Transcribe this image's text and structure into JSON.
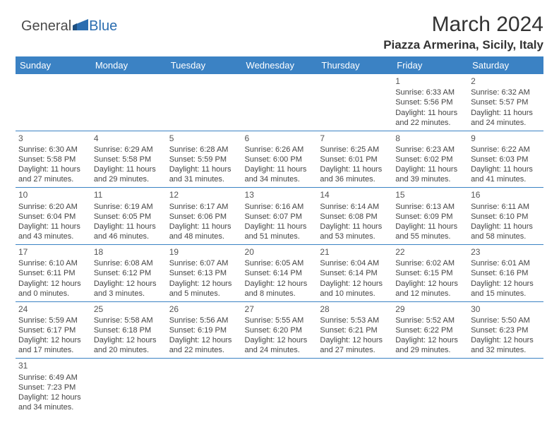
{
  "logo": {
    "text_a": "General",
    "text_b": "Blue"
  },
  "title": "March 2024",
  "location": "Piazza Armerina, Sicily, Italy",
  "colors": {
    "header_bg": "#3b82c4",
    "header_fg": "#ffffff",
    "cell_border": "#3b82c4",
    "text": "#444444",
    "title": "#333333"
  },
  "day_headers": [
    "Sunday",
    "Monday",
    "Tuesday",
    "Wednesday",
    "Thursday",
    "Friday",
    "Saturday"
  ],
  "weeks": [
    [
      null,
      null,
      null,
      null,
      null,
      {
        "n": "1",
        "sunrise": "6:33 AM",
        "sunset": "5:56 PM",
        "daylight": "11 hours and 22 minutes."
      },
      {
        "n": "2",
        "sunrise": "6:32 AM",
        "sunset": "5:57 PM",
        "daylight": "11 hours and 24 minutes."
      }
    ],
    [
      {
        "n": "3",
        "sunrise": "6:30 AM",
        "sunset": "5:58 PM",
        "daylight": "11 hours and 27 minutes."
      },
      {
        "n": "4",
        "sunrise": "6:29 AM",
        "sunset": "5:58 PM",
        "daylight": "11 hours and 29 minutes."
      },
      {
        "n": "5",
        "sunrise": "6:28 AM",
        "sunset": "5:59 PM",
        "daylight": "11 hours and 31 minutes."
      },
      {
        "n": "6",
        "sunrise": "6:26 AM",
        "sunset": "6:00 PM",
        "daylight": "11 hours and 34 minutes."
      },
      {
        "n": "7",
        "sunrise": "6:25 AM",
        "sunset": "6:01 PM",
        "daylight": "11 hours and 36 minutes."
      },
      {
        "n": "8",
        "sunrise": "6:23 AM",
        "sunset": "6:02 PM",
        "daylight": "11 hours and 39 minutes."
      },
      {
        "n": "9",
        "sunrise": "6:22 AM",
        "sunset": "6:03 PM",
        "daylight": "11 hours and 41 minutes."
      }
    ],
    [
      {
        "n": "10",
        "sunrise": "6:20 AM",
        "sunset": "6:04 PM",
        "daylight": "11 hours and 43 minutes."
      },
      {
        "n": "11",
        "sunrise": "6:19 AM",
        "sunset": "6:05 PM",
        "daylight": "11 hours and 46 minutes."
      },
      {
        "n": "12",
        "sunrise": "6:17 AM",
        "sunset": "6:06 PM",
        "daylight": "11 hours and 48 minutes."
      },
      {
        "n": "13",
        "sunrise": "6:16 AM",
        "sunset": "6:07 PM",
        "daylight": "11 hours and 51 minutes."
      },
      {
        "n": "14",
        "sunrise": "6:14 AM",
        "sunset": "6:08 PM",
        "daylight": "11 hours and 53 minutes."
      },
      {
        "n": "15",
        "sunrise": "6:13 AM",
        "sunset": "6:09 PM",
        "daylight": "11 hours and 55 minutes."
      },
      {
        "n": "16",
        "sunrise": "6:11 AM",
        "sunset": "6:10 PM",
        "daylight": "11 hours and 58 minutes."
      }
    ],
    [
      {
        "n": "17",
        "sunrise": "6:10 AM",
        "sunset": "6:11 PM",
        "daylight": "12 hours and 0 minutes."
      },
      {
        "n": "18",
        "sunrise": "6:08 AM",
        "sunset": "6:12 PM",
        "daylight": "12 hours and 3 minutes."
      },
      {
        "n": "19",
        "sunrise": "6:07 AM",
        "sunset": "6:13 PM",
        "daylight": "12 hours and 5 minutes."
      },
      {
        "n": "20",
        "sunrise": "6:05 AM",
        "sunset": "6:14 PM",
        "daylight": "12 hours and 8 minutes."
      },
      {
        "n": "21",
        "sunrise": "6:04 AM",
        "sunset": "6:14 PM",
        "daylight": "12 hours and 10 minutes."
      },
      {
        "n": "22",
        "sunrise": "6:02 AM",
        "sunset": "6:15 PM",
        "daylight": "12 hours and 12 minutes."
      },
      {
        "n": "23",
        "sunrise": "6:01 AM",
        "sunset": "6:16 PM",
        "daylight": "12 hours and 15 minutes."
      }
    ],
    [
      {
        "n": "24",
        "sunrise": "5:59 AM",
        "sunset": "6:17 PM",
        "daylight": "12 hours and 17 minutes."
      },
      {
        "n": "25",
        "sunrise": "5:58 AM",
        "sunset": "6:18 PM",
        "daylight": "12 hours and 20 minutes."
      },
      {
        "n": "26",
        "sunrise": "5:56 AM",
        "sunset": "6:19 PM",
        "daylight": "12 hours and 22 minutes."
      },
      {
        "n": "27",
        "sunrise": "5:55 AM",
        "sunset": "6:20 PM",
        "daylight": "12 hours and 24 minutes."
      },
      {
        "n": "28",
        "sunrise": "5:53 AM",
        "sunset": "6:21 PM",
        "daylight": "12 hours and 27 minutes."
      },
      {
        "n": "29",
        "sunrise": "5:52 AM",
        "sunset": "6:22 PM",
        "daylight": "12 hours and 29 minutes."
      },
      {
        "n": "30",
        "sunrise": "5:50 AM",
        "sunset": "6:23 PM",
        "daylight": "12 hours and 32 minutes."
      }
    ],
    [
      {
        "n": "31",
        "sunrise": "6:49 AM",
        "sunset": "7:23 PM",
        "daylight": "12 hours and 34 minutes."
      },
      null,
      null,
      null,
      null,
      null,
      null
    ]
  ],
  "labels": {
    "sunrise": "Sunrise:",
    "sunset": "Sunset:",
    "daylight": "Daylight:"
  }
}
